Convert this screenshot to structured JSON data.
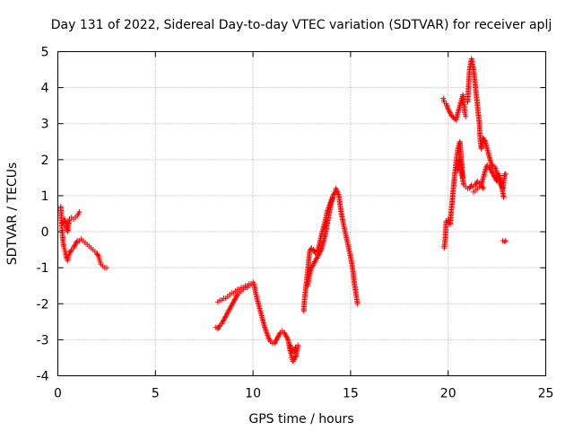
{
  "chart_data": {
    "type": "scatter",
    "title": "Day 131 of 2022, Sidereal Day-to-day VTEC variation (SDTVAR) for receiver aplj",
    "xlabel": "GPS time / hours",
    "ylabel": "SDTVAR / TECUs",
    "xlim": [
      0,
      25
    ],
    "ylim": [
      -4,
      5
    ],
    "xticks": [
      0,
      5,
      10,
      15,
      20,
      25
    ],
    "yticks": [
      -4,
      -3,
      -2,
      -1,
      0,
      1,
      2,
      3,
      4,
      5
    ],
    "grid": true,
    "marker": "+",
    "colors": {
      "series": "#ff0000",
      "grid": "#a0a0a0",
      "axes": "#000000"
    },
    "series": [
      {
        "name": "SDTVAR",
        "segments": [
          [
            [
              0.15,
              0.7
            ],
            [
              0.2,
              0.2
            ],
            [
              0.25,
              -0.2
            ],
            [
              0.3,
              -0.4
            ],
            [
              0.35,
              -0.5
            ],
            [
              0.4,
              -0.6
            ],
            [
              0.45,
              -0.75
            ],
            [
              0.5,
              -0.8
            ],
            [
              0.55,
              -0.7
            ],
            [
              0.6,
              -0.6
            ],
            [
              0.7,
              -0.5
            ],
            [
              0.8,
              -0.45
            ],
            [
              0.9,
              -0.35
            ],
            [
              1.0,
              -0.25
            ],
            [
              1.1,
              -0.25
            ],
            [
              1.2,
              -0.2
            ],
            [
              1.3,
              -0.25
            ],
            [
              1.4,
              -0.3
            ],
            [
              1.5,
              -0.35
            ],
            [
              1.6,
              -0.4
            ],
            [
              1.7,
              -0.45
            ],
            [
              1.8,
              -0.5
            ],
            [
              1.9,
              -0.55
            ],
            [
              2.0,
              -0.6
            ],
            [
              2.1,
              -0.7
            ],
            [
              2.15,
              -0.8
            ],
            [
              2.2,
              -0.9
            ],
            [
              2.3,
              -0.95
            ],
            [
              2.4,
              -1.0
            ],
            [
              2.5,
              -1.0
            ]
          ],
          [
            [
              0.25,
              0.25
            ],
            [
              0.3,
              0.3
            ],
            [
              0.35,
              0.35
            ],
            [
              0.4,
              0.25
            ],
            [
              0.45,
              0.1
            ],
            [
              0.5,
              0.0
            ],
            [
              0.55,
              0.2
            ],
            [
              0.6,
              0.35
            ],
            [
              0.7,
              0.4
            ],
            [
              0.8,
              0.35
            ],
            [
              0.9,
              0.4
            ],
            [
              1.0,
              0.45
            ],
            [
              1.05,
              0.5
            ],
            [
              1.1,
              0.55
            ]
          ],
          [
            [
              8.1,
              -2.65
            ],
            [
              8.2,
              -2.7
            ],
            [
              8.3,
              -2.6
            ],
            [
              8.4,
              -2.55
            ],
            [
              8.5,
              -2.45
            ],
            [
              8.6,
              -2.35
            ],
            [
              8.7,
              -2.25
            ],
            [
              8.8,
              -2.15
            ],
            [
              8.9,
              -2.05
            ],
            [
              9.0,
              -1.95
            ],
            [
              9.1,
              -1.85
            ],
            [
              9.2,
              -1.75
            ],
            [
              9.3,
              -1.7
            ],
            [
              9.4,
              -1.65
            ],
            [
              9.5,
              -1.6
            ],
            [
              9.6,
              -1.55
            ],
            [
              9.7,
              -1.55
            ],
            [
              9.8,
              -1.5
            ],
            [
              9.9,
              -1.45
            ],
            [
              10.0,
              -1.4
            ],
            [
              10.05,
              -1.45
            ],
            [
              10.1,
              -1.6
            ],
            [
              10.2,
              -1.85
            ],
            [
              10.3,
              -2.05
            ],
            [
              10.4,
              -2.25
            ],
            [
              10.5,
              -2.45
            ],
            [
              10.6,
              -2.65
            ],
            [
              10.7,
              -2.8
            ],
            [
              10.8,
              -2.95
            ],
            [
              10.9,
              -3.05
            ],
            [
              11.0,
              -3.1
            ],
            [
              11.1,
              -3.1
            ],
            [
              11.2,
              -3.0
            ],
            [
              11.3,
              -2.9
            ],
            [
              11.4,
              -2.8
            ],
            [
              11.5,
              -2.75
            ],
            [
              11.6,
              -2.8
            ],
            [
              11.7,
              -2.9
            ],
            [
              11.8,
              -3.0
            ],
            [
              11.9,
              -3.3
            ],
            [
              12.0,
              -3.5
            ],
            [
              12.05,
              -3.6
            ],
            [
              12.1,
              -3.55
            ],
            [
              12.2,
              -3.45
            ],
            [
              12.25,
              -3.3
            ],
            [
              12.3,
              -3.2
            ]
          ],
          [
            [
              8.2,
              -1.95
            ],
            [
              8.3,
              -1.9
            ],
            [
              8.4,
              -1.9
            ],
            [
              8.5,
              -1.85
            ],
            [
              8.6,
              -1.85
            ],
            [
              8.7,
              -1.8
            ],
            [
              8.8,
              -1.75
            ],
            [
              8.9,
              -1.7
            ],
            [
              9.0,
              -1.7
            ],
            [
              9.1,
              -1.65
            ],
            [
              9.2,
              -1.6
            ],
            [
              9.3,
              -1.6
            ],
            [
              9.4,
              -1.55
            ],
            [
              9.5,
              -1.55
            ],
            [
              9.6,
              -1.5
            ],
            [
              9.7,
              -1.5
            ],
            [
              9.8,
              -1.45
            ]
          ],
          [
            [
              11.9,
              -3.15
            ],
            [
              12.0,
              -3.3
            ],
            [
              12.1,
              -3.35
            ],
            [
              12.2,
              -3.2
            ],
            [
              12.3,
              -3.15
            ]
          ],
          [
            [
              12.6,
              -2.2
            ],
            [
              12.65,
              -1.8
            ],
            [
              12.7,
              -1.6
            ],
            [
              12.8,
              -1.1
            ],
            [
              12.9,
              -0.55
            ],
            [
              13.0,
              -0.45
            ],
            [
              13.1,
              -0.5
            ],
            [
              13.2,
              -0.6
            ],
            [
              13.3,
              -0.55
            ],
            [
              13.4,
              -0.35
            ],
            [
              13.5,
              -0.1
            ],
            [
              13.6,
              0.1
            ],
            [
              13.7,
              0.3
            ],
            [
              13.8,
              0.55
            ],
            [
              13.9,
              0.7
            ],
            [
              14.0,
              0.85
            ],
            [
              14.1,
              1.0
            ],
            [
              14.2,
              1.1
            ],
            [
              14.25,
              1.2
            ],
            [
              14.3,
              1.15
            ],
            [
              14.4,
              1.0
            ],
            [
              14.5,
              0.6
            ],
            [
              14.6,
              0.3
            ],
            [
              14.7,
              0.05
            ],
            [
              14.8,
              -0.2
            ],
            [
              14.9,
              -0.45
            ],
            [
              15.0,
              -0.7
            ],
            [
              15.1,
              -1.0
            ],
            [
              15.2,
              -1.45
            ],
            [
              15.3,
              -1.8
            ],
            [
              15.35,
              -2.0
            ]
          ],
          [
            [
              12.8,
              -1.5
            ],
            [
              12.9,
              -1.2
            ],
            [
              13.0,
              -1.0
            ],
            [
              13.5,
              -0.5
            ],
            [
              13.6,
              -0.3
            ],
            [
              13.7,
              -0.1
            ],
            [
              13.8,
              0.2
            ],
            [
              13.9,
              0.5
            ],
            [
              14.0,
              0.8
            ],
            [
              14.1,
              0.95
            ]
          ],
          [
            [
              19.8,
              -0.45
            ],
            [
              19.85,
              -0.2
            ],
            [
              19.9,
              0.3
            ],
            [
              20.0,
              0.35
            ],
            [
              20.1,
              0.2
            ],
            [
              20.2,
              0.8
            ],
            [
              20.3,
              1.4
            ],
            [
              20.4,
              1.9
            ],
            [
              20.5,
              2.3
            ],
            [
              20.6,
              2.5
            ],
            [
              20.65,
              2.2
            ],
            [
              20.7,
              1.6
            ],
            [
              20.8,
              1.3
            ],
            [
              20.9,
              1.25
            ],
            [
              21.0,
              1.2
            ],
            [
              21.1,
              1.2
            ],
            [
              21.2,
              1.3
            ],
            [
              21.3,
              1.25
            ],
            [
              21.4,
              1.3
            ],
            [
              21.5,
              1.4
            ],
            [
              21.6,
              1.35
            ],
            [
              21.7,
              1.3
            ],
            [
              21.8,
              1.5
            ],
            [
              21.9,
              1.7
            ],
            [
              22.0,
              1.85
            ],
            [
              22.1,
              1.8
            ],
            [
              22.2,
              1.7
            ],
            [
              22.3,
              1.6
            ],
            [
              22.4,
              1.5
            ],
            [
              22.5,
              1.4
            ],
            [
              22.6,
              1.6
            ],
            [
              22.7,
              1.4
            ],
            [
              22.8,
              1.1
            ],
            [
              22.85,
              0.95
            ]
          ],
          [
            [
              19.75,
              3.7
            ],
            [
              19.8,
              3.6
            ],
            [
              19.9,
              3.55
            ],
            [
              20.0,
              3.4
            ],
            [
              20.1,
              3.3
            ],
            [
              20.2,
              3.2
            ],
            [
              20.4,
              3.1
            ],
            [
              20.5,
              3.3
            ],
            [
              20.6,
              3.5
            ],
            [
              20.7,
              3.7
            ],
            [
              20.75,
              3.8
            ],
            [
              20.8,
              3.6
            ],
            [
              20.85,
              3.3
            ],
            [
              20.9,
              3.2
            ]
          ],
          [
            [
              20.5,
              1.7
            ],
            [
              20.6,
              2.0
            ],
            [
              20.7,
              1.9
            ],
            [
              20.75,
              1.5
            ]
          ],
          [
            [
              21.0,
              3.6
            ],
            [
              21.05,
              4.1
            ],
            [
              21.1,
              4.5
            ],
            [
              21.2,
              4.8
            ],
            [
              21.3,
              4.5
            ],
            [
              21.35,
              4.3
            ],
            [
              21.4,
              4.0
            ],
            [
              21.5,
              3.5
            ],
            [
              21.6,
              3.0
            ],
            [
              21.65,
              2.5
            ],
            [
              21.7,
              2.3
            ],
            [
              21.8,
              2.6
            ],
            [
              21.9,
              2.5
            ],
            [
              22.0,
              2.3
            ],
            [
              22.1,
              2.1
            ],
            [
              22.2,
              1.9
            ],
            [
              22.3,
              1.8
            ],
            [
              22.4,
              1.8
            ],
            [
              22.5,
              1.6
            ],
            [
              22.6,
              1.5
            ],
            [
              22.7,
              1.3
            ],
            [
              22.8,
              1.2
            ],
            [
              22.9,
              1.6
            ],
            [
              22.95,
              1.6
            ]
          ],
          [
            [
              21.3,
              1.1
            ],
            [
              21.4,
              1.15
            ],
            [
              21.5,
              1.2
            ],
            [
              21.6,
              1.25
            ],
            [
              21.7,
              1.3
            ],
            [
              21.8,
              1.2
            ]
          ],
          [
            [
              22.8,
              -0.25
            ],
            [
              22.9,
              -0.28
            ],
            [
              22.95,
              -0.25
            ]
          ]
        ]
      }
    ]
  }
}
